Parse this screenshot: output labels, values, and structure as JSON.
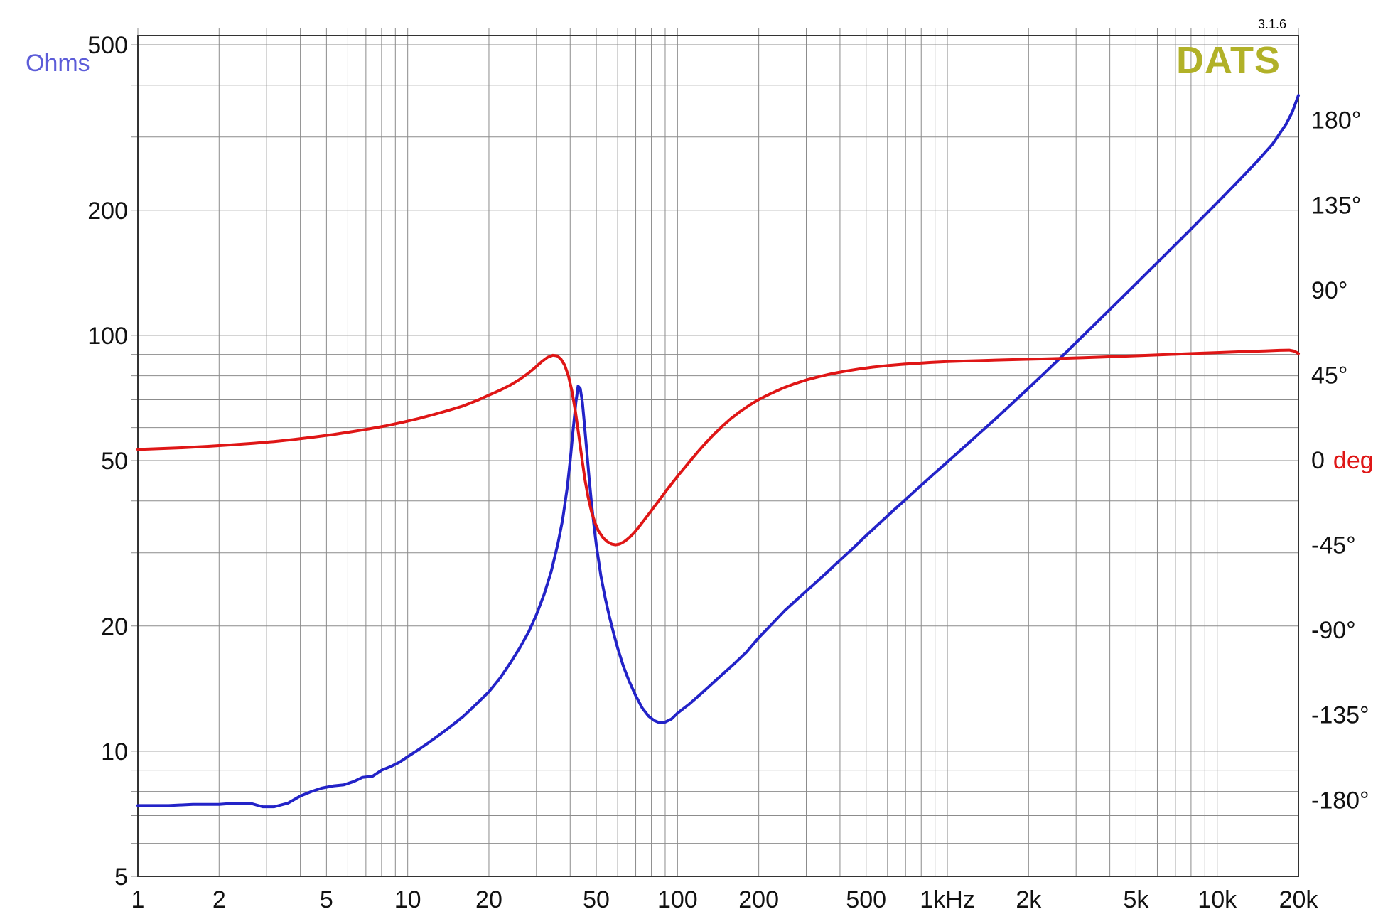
{
  "window": {
    "brand": "DATS",
    "version": "3.1.6"
  },
  "labels": {
    "left_axis_title": "Ohms"
  },
  "colors": {
    "impedance": "#2323c8",
    "phase": "#df1616",
    "ohms_label": "#5c5cd8",
    "brand": "#b1b128",
    "grid": "#8c8c8c",
    "frame": "#333333",
    "tick_text": "#111111"
  },
  "chart_data": {
    "type": "line",
    "grid": true,
    "legend": "none",
    "axes": {
      "bottom": {
        "scale": "log",
        "min": 1,
        "max": 20000,
        "ticks": [
          {
            "f": 1,
            "label": "1"
          },
          {
            "f": 2,
            "label": "2"
          },
          {
            "f": 5,
            "label": "5"
          },
          {
            "f": 10,
            "label": "10"
          },
          {
            "f": 20,
            "label": "20"
          },
          {
            "f": 50,
            "label": "50"
          },
          {
            "f": 100,
            "label": "100"
          },
          {
            "f": 200,
            "label": "200"
          },
          {
            "f": 500,
            "label": "500"
          },
          {
            "f": 1000,
            "label": "1kHz"
          },
          {
            "f": 2000,
            "label": "2k"
          },
          {
            "f": 5000,
            "label": "5k"
          },
          {
            "f": 10000,
            "label": "10k"
          },
          {
            "f": 20000,
            "label": "20k"
          }
        ]
      },
      "left": {
        "scale": "log",
        "min": 5,
        "max": 500,
        "unit": "Ohms",
        "ticks": [
          {
            "ohms": 500,
            "label": "500"
          },
          {
            "ohms": 200,
            "label": "200"
          },
          {
            "ohms": 100,
            "label": "100"
          },
          {
            "ohms": 50,
            "label": "50"
          },
          {
            "ohms": 20,
            "label": "20"
          },
          {
            "ohms": 10,
            "label": "10"
          },
          {
            "ohms": 5,
            "label": "5"
          }
        ]
      },
      "right": {
        "scale": "linear",
        "min": -180,
        "max": 180,
        "unit": "deg",
        "ticks": [
          {
            "deg": 180,
            "label": "180°"
          },
          {
            "deg": 135,
            "label": "135°"
          },
          {
            "deg": 90,
            "label": "90°"
          },
          {
            "deg": 45,
            "label": "45°"
          },
          {
            "deg": 0,
            "label": "0",
            "unit": "deg"
          },
          {
            "deg": -45,
            "label": "-45°"
          },
          {
            "deg": -90,
            "label": "-90°"
          },
          {
            "deg": -135,
            "label": "-135°"
          },
          {
            "deg": -180,
            "label": "-180°"
          }
        ]
      }
    },
    "series": [
      {
        "name": "impedance_magnitude",
        "axis": "left",
        "units": "ohms",
        "points": [
          [
            1,
            7.4
          ],
          [
            1.3,
            7.4
          ],
          [
            1.6,
            7.45
          ],
          [
            2,
            7.45
          ],
          [
            2.3,
            7.5
          ],
          [
            2.6,
            7.5
          ],
          [
            2.9,
            7.35
          ],
          [
            3.2,
            7.35
          ],
          [
            3.6,
            7.5
          ],
          [
            4,
            7.8
          ],
          [
            4.4,
            8.0
          ],
          [
            4.8,
            8.15
          ],
          [
            5.3,
            8.25
          ],
          [
            5.8,
            8.3
          ],
          [
            6.3,
            8.45
          ],
          [
            6.8,
            8.65
          ],
          [
            7.4,
            8.7
          ],
          [
            8,
            9.0
          ],
          [
            8.7,
            9.2
          ],
          [
            9.3,
            9.4
          ],
          [
            10,
            9.7
          ],
          [
            11,
            10.1
          ],
          [
            12,
            10.5
          ],
          [
            13,
            10.9
          ],
          [
            14,
            11.3
          ],
          [
            15,
            11.7
          ],
          [
            16,
            12.1
          ],
          [
            17,
            12.55
          ],
          [
            18,
            13.0
          ],
          [
            19,
            13.45
          ],
          [
            20,
            13.9
          ],
          [
            22,
            15.0
          ],
          [
            24,
            16.3
          ],
          [
            26,
            17.7
          ],
          [
            28,
            19.3
          ],
          [
            30,
            21.3
          ],
          [
            32,
            23.8
          ],
          [
            34,
            27.0
          ],
          [
            36,
            31.5
          ],
          [
            37.5,
            36
          ],
          [
            39,
            43
          ],
          [
            40,
            50
          ],
          [
            41,
            59
          ],
          [
            42,
            69
          ],
          [
            42.8,
            75.5
          ],
          [
            43.6,
            74.5
          ],
          [
            44.4,
            69
          ],
          [
            45.2,
            61
          ],
          [
            46,
            53.5
          ],
          [
            47,
            45.5
          ],
          [
            48,
            39.5
          ],
          [
            49,
            35
          ],
          [
            50,
            31.3
          ],
          [
            52,
            26.4
          ],
          [
            54,
            23.3
          ],
          [
            56,
            21.0
          ],
          [
            58,
            19.2
          ],
          [
            60,
            17.7
          ],
          [
            63,
            16.0
          ],
          [
            66,
            14.8
          ],
          [
            70,
            13.6
          ],
          [
            74,
            12.7
          ],
          [
            78,
            12.15
          ],
          [
            82,
            11.85
          ],
          [
            86,
            11.7
          ],
          [
            90,
            11.75
          ],
          [
            95,
            11.95
          ],
          [
            100,
            12.35
          ],
          [
            110,
            12.95
          ],
          [
            120,
            13.6
          ],
          [
            130,
            14.25
          ],
          [
            145,
            15.2
          ],
          [
            160,
            16.1
          ],
          [
            180,
            17.3
          ],
          [
            200,
            18.75
          ],
          [
            225,
            20.3
          ],
          [
            250,
            21.8
          ],
          [
            280,
            23.3
          ],
          [
            320,
            25.2
          ],
          [
            360,
            27.0
          ],
          [
            400,
            28.8
          ],
          [
            450,
            30.9
          ],
          [
            500,
            33.0
          ],
          [
            560,
            35.3
          ],
          [
            630,
            37.9
          ],
          [
            700,
            40.3
          ],
          [
            800,
            43.6
          ],
          [
            900,
            46.7
          ],
          [
            1000,
            49.6
          ],
          [
            1150,
            53.8
          ],
          [
            1300,
            57.8
          ],
          [
            1500,
            62.8
          ],
          [
            1700,
            67.7
          ],
          [
            2000,
            74.7
          ],
          [
            2300,
            81.4
          ],
          [
            2600,
            87.8
          ],
          [
            3000,
            96.1
          ],
          [
            3500,
            106
          ],
          [
            4000,
            115.4
          ],
          [
            4500,
            124.4
          ],
          [
            5000,
            133.1
          ],
          [
            5600,
            143.2
          ],
          [
            6300,
            154.4
          ],
          [
            7000,
            165.3
          ],
          [
            8000,
            180.2
          ],
          [
            9000,
            194.6
          ],
          [
            10000,
            208.5
          ],
          [
            11000,
            222.1
          ],
          [
            12500,
            242
          ],
          [
            14000,
            261.3
          ],
          [
            16000,
            288
          ],
          [
            18000,
            322
          ],
          [
            19000,
            345
          ],
          [
            20000,
            378
          ]
        ]
      },
      {
        "name": "impedance_phase",
        "axis": "right",
        "units": "deg",
        "points": [
          [
            1,
            5.5
          ],
          [
            1.4,
            6.3
          ],
          [
            1.8,
            7.1
          ],
          [
            2.2,
            7.9
          ],
          [
            2.7,
            8.8
          ],
          [
            3.2,
            9.7
          ],
          [
            3.8,
            10.8
          ],
          [
            4.5,
            12.1
          ],
          [
            5.3,
            13.4
          ],
          [
            6.2,
            14.9
          ],
          [
            7.2,
            16.4
          ],
          [
            8.3,
            18
          ],
          [
            9.6,
            19.9
          ],
          [
            11,
            21.9
          ],
          [
            12.5,
            24
          ],
          [
            14,
            26
          ],
          [
            16,
            28.5
          ],
          [
            18,
            31.3
          ],
          [
            20,
            34.3
          ],
          [
            22,
            36.9
          ],
          [
            24,
            39.6
          ],
          [
            26,
            42.6
          ],
          [
            28,
            45.9
          ],
          [
            30,
            49.5
          ],
          [
            31.5,
            52.2
          ],
          [
            33,
            54.3
          ],
          [
            34.5,
            55.4
          ],
          [
            35.8,
            55.1
          ],
          [
            37,
            53.3
          ],
          [
            38.2,
            50
          ],
          [
            39.4,
            44.5
          ],
          [
            40.6,
            36.5
          ],
          [
            41.8,
            26
          ],
          [
            43,
            13.5
          ],
          [
            44.2,
            1
          ],
          [
            45.4,
            -10.5
          ],
          [
            46.6,
            -19.5
          ],
          [
            48,
            -27.5
          ],
          [
            49.5,
            -33.5
          ],
          [
            51,
            -37.8
          ],
          [
            53,
            -41.3
          ],
          [
            55,
            -43.4
          ],
          [
            57,
            -44.6
          ],
          [
            59,
            -45
          ],
          [
            61,
            -44.6
          ],
          [
            63.5,
            -43.3
          ],
          [
            66,
            -41.4
          ],
          [
            69,
            -38.6
          ],
          [
            72,
            -35.4
          ],
          [
            75,
            -32.1
          ],
          [
            79,
            -27.9
          ],
          [
            83,
            -23.8
          ],
          [
            87,
            -19.9
          ],
          [
            91,
            -16.2
          ],
          [
            96,
            -11.9
          ],
          [
            101,
            -7.9
          ],
          [
            107,
            -3.6
          ],
          [
            113,
            0.5
          ],
          [
            120,
            4.9
          ],
          [
            128,
            9.4
          ],
          [
            137,
            13.8
          ],
          [
            147,
            18
          ],
          [
            158,
            21.9
          ],
          [
            170,
            25.4
          ],
          [
            185,
            29
          ],
          [
            200,
            31.9
          ],
          [
            220,
            34.9
          ],
          [
            245,
            37.9
          ],
          [
            270,
            40.2
          ],
          [
            300,
            42.3
          ],
          [
            335,
            44.1
          ],
          [
            375,
            45.7
          ],
          [
            420,
            47
          ],
          [
            470,
            48.1
          ],
          [
            530,
            49.1
          ],
          [
            600,
            49.9
          ],
          [
            680,
            50.6
          ],
          [
            770,
            51.1
          ],
          [
            870,
            51.6
          ],
          [
            1000,
            52
          ],
          [
            1150,
            52.3
          ],
          [
            1350,
            52.6
          ],
          [
            1600,
            52.9
          ],
          [
            1900,
            53.2
          ],
          [
            2300,
            53.5
          ],
          [
            2700,
            53.8
          ],
          [
            3200,
            54.1
          ],
          [
            3800,
            54.5
          ],
          [
            4500,
            54.9
          ],
          [
            5300,
            55.3
          ],
          [
            6300,
            55.7
          ],
          [
            7500,
            56.1
          ],
          [
            8800,
            56.5
          ],
          [
            10000,
            56.8
          ],
          [
            11500,
            57.1
          ],
          [
            13000,
            57.4
          ],
          [
            15000,
            57.7
          ],
          [
            17000,
            58
          ],
          [
            18500,
            58.1
          ],
          [
            19300,
            57.6
          ],
          [
            20000,
            56.3
          ]
        ]
      }
    ]
  }
}
